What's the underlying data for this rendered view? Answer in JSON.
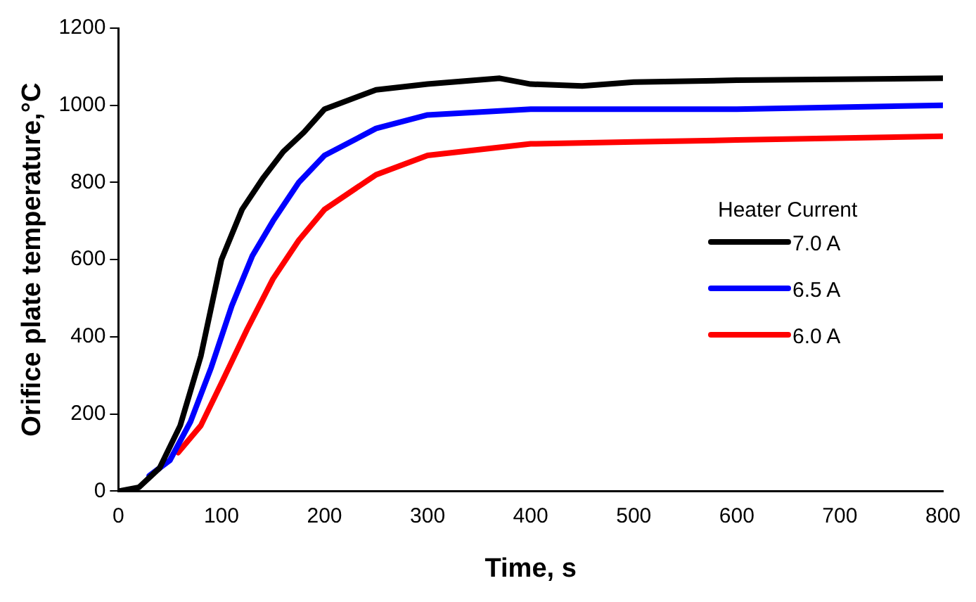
{
  "chart_data": {
    "type": "line",
    "xlabel": "Time, s",
    "ylabel": "Orifice plate temperature,°C",
    "legend_title": "Heater Current",
    "legend": "right",
    "grid": false,
    "marker": "none",
    "line_style": "solid",
    "xlim": [
      0,
      800
    ],
    "xticks": [
      0,
      100,
      200,
      300,
      400,
      500,
      600,
      700,
      800
    ],
    "ylim": [
      0,
      1200
    ],
    "yticks": [
      0,
      200,
      400,
      600,
      800,
      1000,
      1200
    ],
    "series": [
      {
        "name": "7.0 A",
        "color": "#000000",
        "x": [
          0,
          20,
          40,
          60,
          80,
          100,
          120,
          140,
          160,
          180,
          200,
          250,
          300,
          370,
          400,
          450,
          500,
          600,
          800
        ],
        "values": [
          0,
          10,
          60,
          170,
          350,
          600,
          730,
          810,
          880,
          930,
          990,
          1040,
          1055,
          1070,
          1055,
          1050,
          1060,
          1065,
          1070
        ]
      },
      {
        "name": "6.5 A",
        "color": "#0000ff",
        "x": [
          30,
          50,
          70,
          90,
          110,
          130,
          150,
          175,
          200,
          250,
          300,
          400,
          500,
          600,
          800
        ],
        "values": [
          40,
          80,
          180,
          320,
          480,
          610,
          700,
          800,
          870,
          940,
          975,
          990,
          990,
          990,
          1000
        ]
      },
      {
        "name": "6.0 A",
        "color": "#ff0000",
        "x": [
          58,
          80,
          100,
          125,
          150,
          175,
          200,
          250,
          300,
          400,
          500,
          600,
          800
        ],
        "values": [
          100,
          170,
          280,
          420,
          550,
          650,
          730,
          820,
          870,
          900,
          905,
          910,
          920
        ]
      }
    ]
  }
}
